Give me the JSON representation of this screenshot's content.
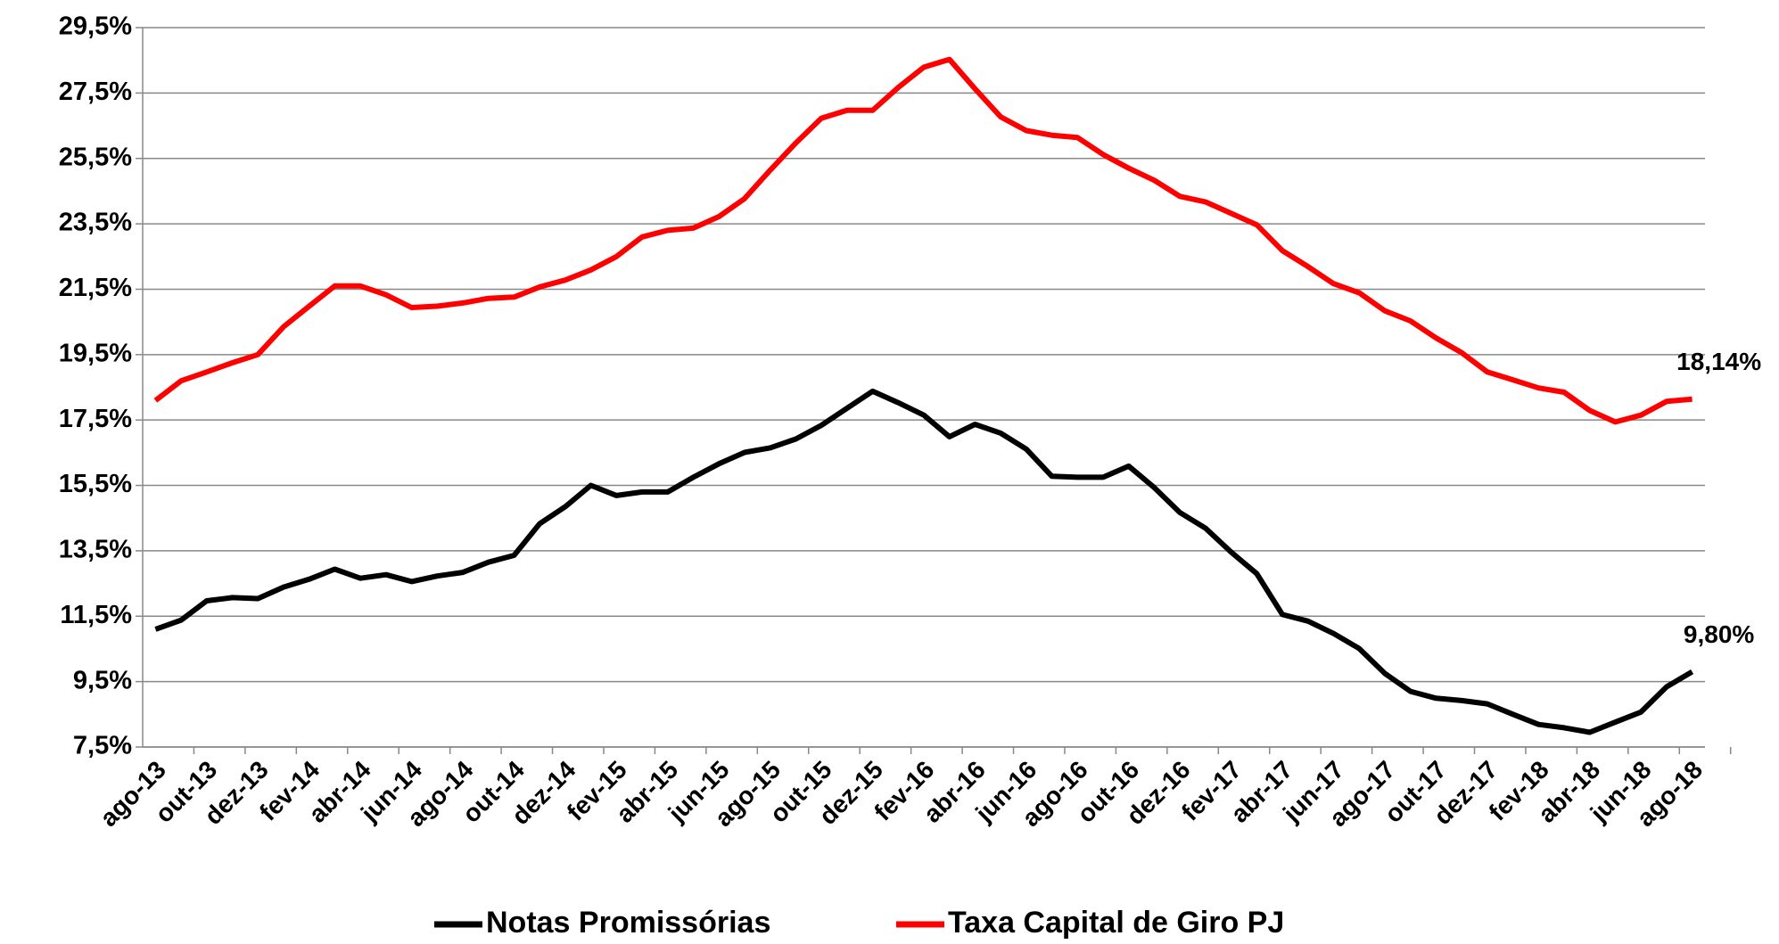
{
  "chart_data": {
    "type": "line",
    "categories": [
      "ago-13",
      null,
      "out-13",
      null,
      "dez-13",
      null,
      "fev-14",
      null,
      "abr-14",
      null,
      "jun-14",
      null,
      "ago-14",
      null,
      "out-14",
      null,
      "dez-14",
      null,
      "fev-15",
      null,
      "abr-15",
      null,
      "jun-15",
      null,
      "ago-15",
      null,
      "out-15",
      null,
      "dez-15",
      null,
      "fev-16",
      null,
      "abr-16",
      null,
      "jun-16",
      null,
      "ago-16",
      null,
      "out-16",
      null,
      "dez-16",
      null,
      "fev-17",
      null,
      "abr-17",
      null,
      "jun-17",
      null,
      "ago-17",
      null,
      "out-17",
      null,
      "dez-17",
      null,
      "fev-18",
      null,
      "abr-18",
      null,
      "jun-18",
      null,
      "ago-18"
    ],
    "series": [
      {
        "name": "Notas Promissórias",
        "color": "#000000",
        "values": [
          11.1,
          11.38,
          11.97,
          12.07,
          12.04,
          12.39,
          12.63,
          12.94,
          12.66,
          12.77,
          12.56,
          12.73,
          12.84,
          13.15,
          13.36,
          14.33,
          14.85,
          15.5,
          15.19,
          15.3,
          15.3,
          15.75,
          16.16,
          16.51,
          16.65,
          16.92,
          17.34,
          17.86,
          18.38,
          18.03,
          17.65,
          16.99,
          17.37,
          17.1,
          16.61,
          15.78,
          15.75,
          15.75,
          16.09,
          15.43,
          14.67,
          14.19,
          13.46,
          12.8,
          11.55,
          11.35,
          10.97,
          10.51,
          9.75,
          9.2,
          8.99,
          8.92,
          8.82,
          8.5,
          8.19,
          8.09,
          7.95,
          8.26,
          8.57,
          9.34,
          9.8
        ],
        "value_labels": [
          null,
          null,
          null,
          null,
          null,
          null,
          null,
          null,
          null,
          null,
          null,
          null,
          null,
          null,
          null,
          null,
          null,
          null,
          null,
          null,
          null,
          null,
          null,
          null,
          null,
          null,
          null,
          null,
          null,
          null,
          null,
          null,
          null,
          null,
          null,
          null,
          null,
          null,
          null,
          null,
          null,
          null,
          null,
          null,
          null,
          null,
          null,
          null,
          null,
          null,
          null,
          null,
          null,
          null,
          null,
          null,
          null,
          null,
          null,
          null,
          "9,80%"
        ]
      },
      {
        "name": "Taxa Capital de Giro PJ",
        "color": "#ff0000",
        "values": [
          18.1,
          18.7,
          18.97,
          19.25,
          19.5,
          20.35,
          20.98,
          21.6,
          21.6,
          21.33,
          20.94,
          20.98,
          21.08,
          21.22,
          21.26,
          21.57,
          21.78,
          22.09,
          22.5,
          23.1,
          23.3,
          23.37,
          23.72,
          24.27,
          25.14,
          25.97,
          26.73,
          26.97,
          26.97,
          27.67,
          28.29,
          28.53,
          27.63,
          26.77,
          26.35,
          26.21,
          26.14,
          25.62,
          25.2,
          24.83,
          24.34,
          24.17,
          23.82,
          23.47,
          22.68,
          22.19,
          21.67,
          21.39,
          20.84,
          20.53,
          20.01,
          19.56,
          18.97,
          18.73,
          18.48,
          18.35,
          17.79,
          17.44,
          17.65,
          18.07,
          18.14
        ],
        "value_labels": [
          null,
          null,
          null,
          null,
          null,
          null,
          null,
          null,
          null,
          null,
          null,
          null,
          null,
          null,
          null,
          null,
          null,
          null,
          null,
          null,
          null,
          null,
          null,
          null,
          null,
          null,
          null,
          null,
          null,
          null,
          null,
          null,
          null,
          null,
          null,
          null,
          null,
          null,
          null,
          null,
          null,
          null,
          null,
          null,
          null,
          null,
          null,
          null,
          null,
          null,
          null,
          null,
          null,
          null,
          null,
          null,
          null,
          null,
          null,
          null,
          "18,14%"
        ]
      }
    ],
    "ylim": [
      7.5,
      29.5
    ],
    "yticks": [
      {
        "value": 7.5,
        "label": "7,5%"
      },
      {
        "value": 9.5,
        "label": "9,5%"
      },
      {
        "value": 11.5,
        "label": "11,5%"
      },
      {
        "value": 13.5,
        "label": "13,5%"
      },
      {
        "value": 15.5,
        "label": "15,5%"
      },
      {
        "value": 17.5,
        "label": "17,5%"
      },
      {
        "value": 19.5,
        "label": "19,5%"
      },
      {
        "value": 21.5,
        "label": "21,5%"
      },
      {
        "value": 23.5,
        "label": "23,5%"
      },
      {
        "value": 25.5,
        "label": "25,5%"
      },
      {
        "value": 27.5,
        "label": "27,5%"
      },
      {
        "value": 29.5,
        "label": "29,5%"
      }
    ],
    "grid": true,
    "legend": "bottom"
  }
}
